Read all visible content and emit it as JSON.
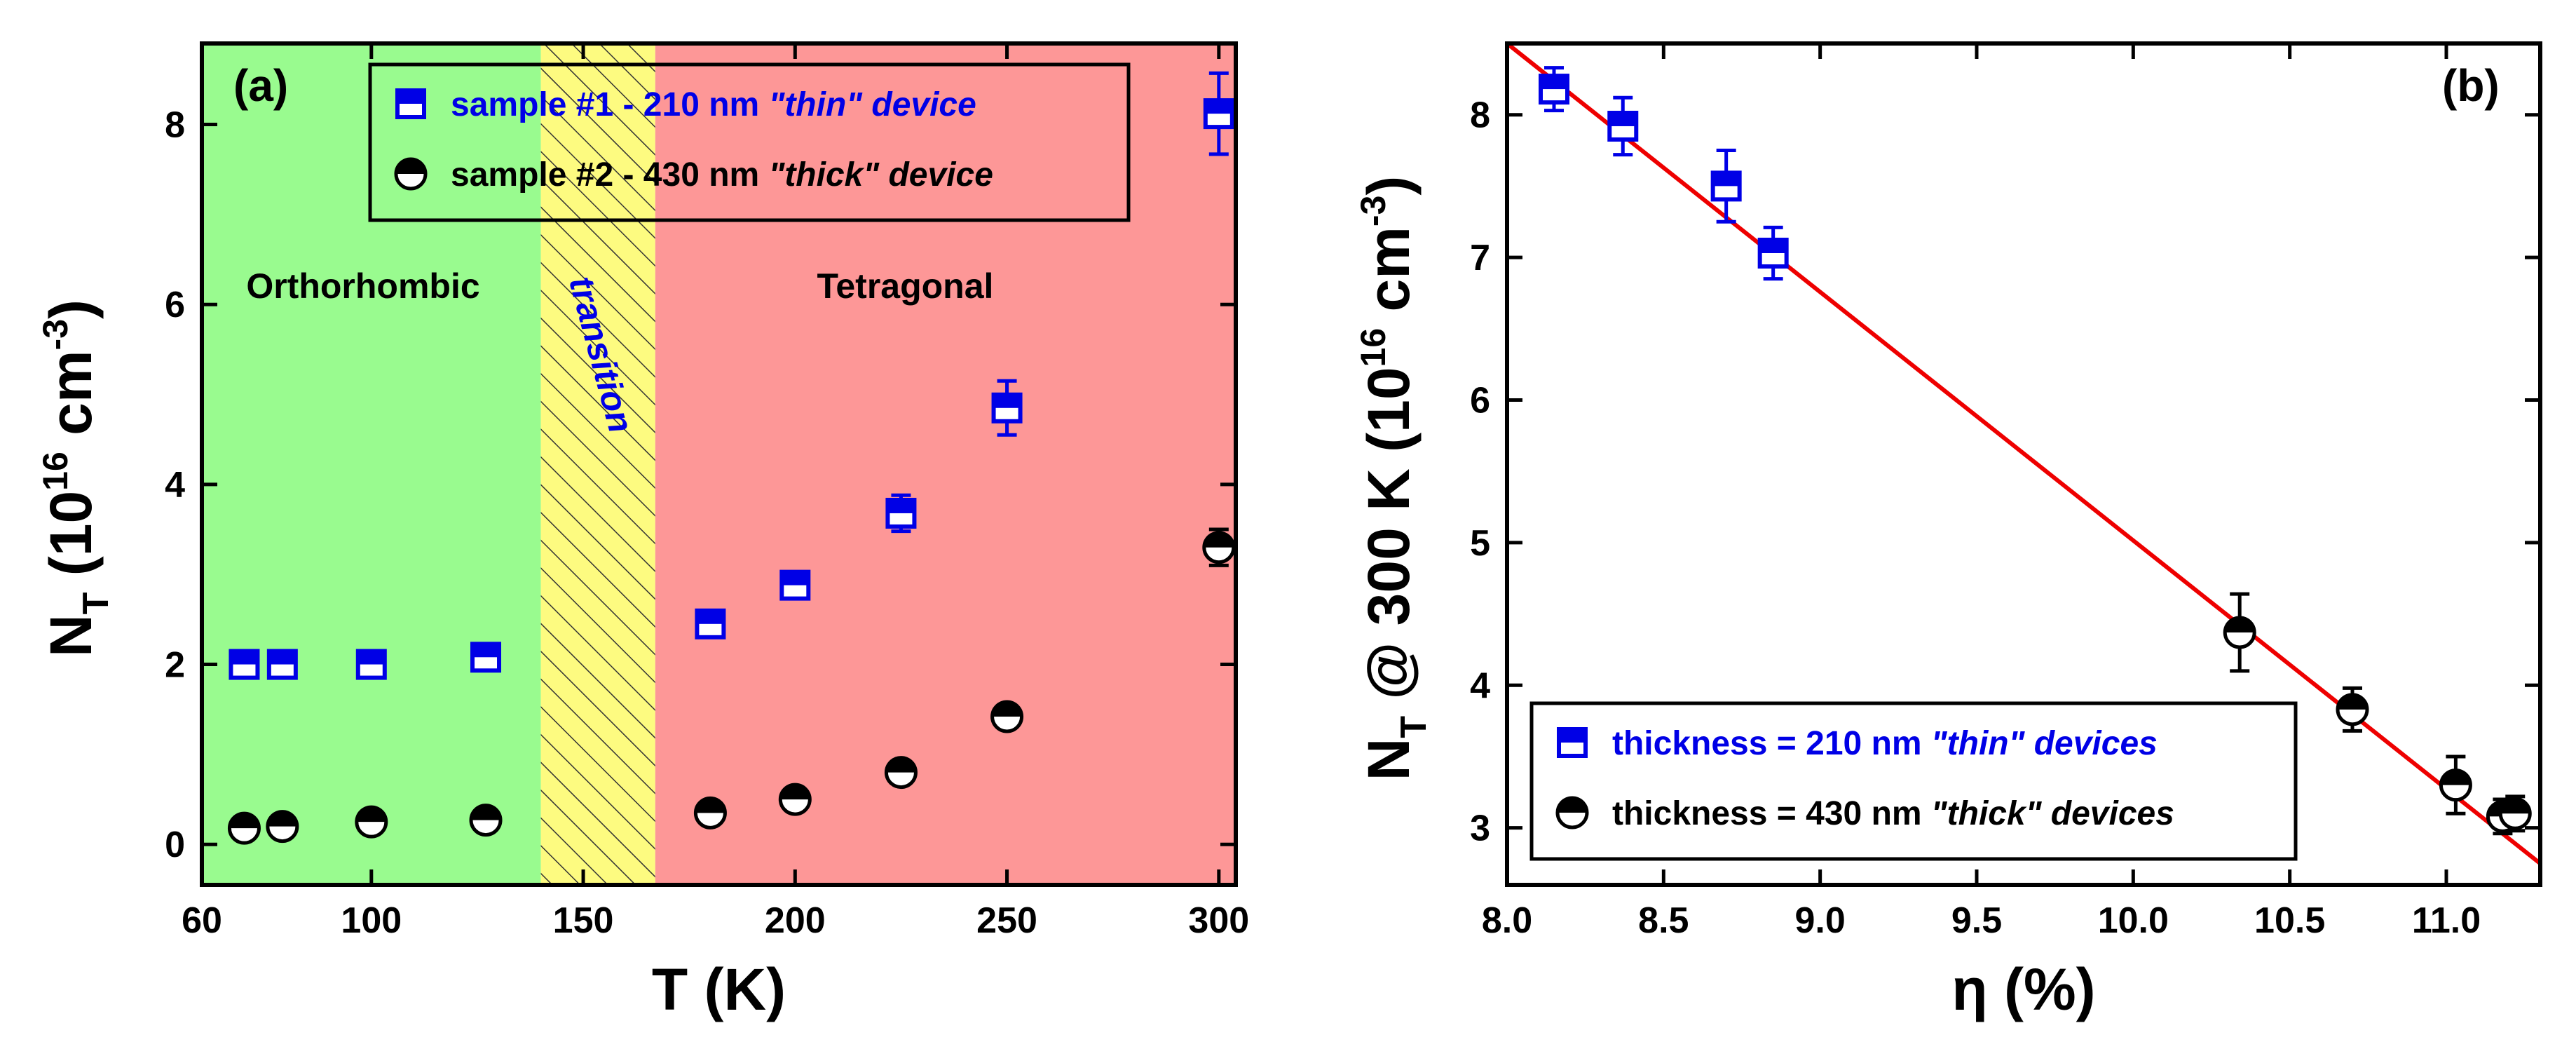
{
  "colors": {
    "thin": "#0000e6",
    "thick": "#000000",
    "fit": "#ee0000",
    "ortho_bg": "#99fb8f",
    "transition_bg": "#fdfb80",
    "tetra_bg": "#fd9797"
  },
  "chart_data": [
    {
      "type": "scatter",
      "panel": "(a)",
      "xlabel": "T (K)",
      "ylabel_base": "N",
      "ylabel_sub": "T",
      "ylabel_unit": "(10",
      "ylabel_exp16": "16",
      "ylabel_unit2": "cm",
      "ylabel_exp3": "-3",
      "ylabel_close": ")",
      "xlim": [
        60,
        304
      ],
      "ylim": [
        -0.45,
        8.9
      ],
      "xticks": [
        60,
        100,
        150,
        200,
        250,
        300
      ],
      "xtick_labels": [
        "60",
        "100",
        "150",
        "200",
        "250",
        "300"
      ],
      "yticks": [
        0,
        2,
        4,
        6,
        8
      ],
      "ytick_labels": [
        "0",
        "2",
        "4",
        "6",
        "8"
      ],
      "regions": [
        {
          "label": "Orthorhombic",
          "x_from": 60,
          "x_to": 140
        },
        {
          "label": "transition",
          "x_from": 140,
          "x_to": 167
        },
        {
          "label": "Tetragonal",
          "x_from": 167,
          "x_to": 304
        }
      ],
      "legend": [
        {
          "prefix": "sample #1 - 210 nm ",
          "emph": "\"thin\" device",
          "series": "thin"
        },
        {
          "prefix": "sample #2 - 430 nm ",
          "emph": "\"thick\" device",
          "series": "thick"
        }
      ],
      "series": [
        {
          "name": "sample #1 - 210 nm \"thin\" device",
          "key": "thin",
          "marker": "square-half-top",
          "x": [
            70,
            79,
            100,
            127,
            180,
            200,
            225,
            250,
            300
          ],
          "y": [
            2.0,
            2.0,
            2.0,
            2.08,
            2.45,
            2.88,
            3.68,
            4.85,
            8.12
          ],
          "yerr": [
            0.1,
            0.1,
            0.1,
            0.1,
            0.1,
            0.1,
            0.2,
            0.3,
            0.45
          ]
        },
        {
          "name": "sample #2 - 430 nm \"thick\" device",
          "key": "thick",
          "marker": "circle-half-top",
          "x": [
            70,
            79,
            100,
            127,
            180,
            200,
            225,
            250,
            300
          ],
          "y": [
            0.18,
            0.2,
            0.25,
            0.27,
            0.35,
            0.5,
            0.8,
            1.42,
            3.3
          ],
          "yerr": [
            0.08,
            0.08,
            0.08,
            0.08,
            0.08,
            0.08,
            0.1,
            0.1,
            0.2
          ]
        }
      ]
    },
    {
      "type": "scatter",
      "panel": "(b)",
      "xlabel": "η (%)",
      "ylabel_base": "N",
      "ylabel_sub": "T",
      "ylabel_unit": "@ 300 K (10",
      "ylabel_exp16": "16",
      "ylabel_unit2": "cm",
      "ylabel_exp3": "-3",
      "ylabel_close": ")",
      "xlim": [
        8.0,
        11.3
      ],
      "ylim": [
        2.6,
        8.5
      ],
      "xticks": [
        8.0,
        8.5,
        9.0,
        9.5,
        10.0,
        10.5,
        11.0
      ],
      "xtick_labels": [
        "8.0",
        "8.5",
        "9.0",
        "9.5",
        "10.0",
        "10.5",
        "11.0"
      ],
      "yticks": [
        3,
        4,
        5,
        6,
        7,
        8
      ],
      "ytick_labels": [
        "3",
        "4",
        "5",
        "6",
        "7",
        "8"
      ],
      "legend": [
        {
          "prefix": "thickness = 210 nm ",
          "emph": "\"thin\" devices",
          "series": "thin"
        },
        {
          "prefix": "thickness = 430 nm ",
          "emph": "\"thick\" devices",
          "series": "thick"
        }
      ],
      "fit_line": {
        "x": [
          8.0,
          11.3
        ],
        "y": [
          8.5,
          2.75
        ]
      },
      "series": [
        {
          "name": "thickness = 210 nm \"thin\" devices",
          "key": "thin",
          "marker": "square-half-top",
          "x": [
            8.15,
            8.37,
            8.7,
            8.85
          ],
          "y": [
            8.18,
            7.92,
            7.5,
            7.03
          ],
          "yerr": [
            0.15,
            0.2,
            0.25,
            0.18
          ]
        },
        {
          "name": "thickness = 430 nm \"thick\" devices",
          "key": "thick",
          "marker": "circle-half-top",
          "x": [
            10.34,
            10.7,
            11.03,
            11.18,
            11.22
          ],
          "y": [
            4.37,
            3.83,
            3.3,
            3.08,
            3.1
          ],
          "yerr": [
            0.27,
            0.15,
            0.2,
            0.12,
            0.12
          ]
        }
      ]
    }
  ]
}
